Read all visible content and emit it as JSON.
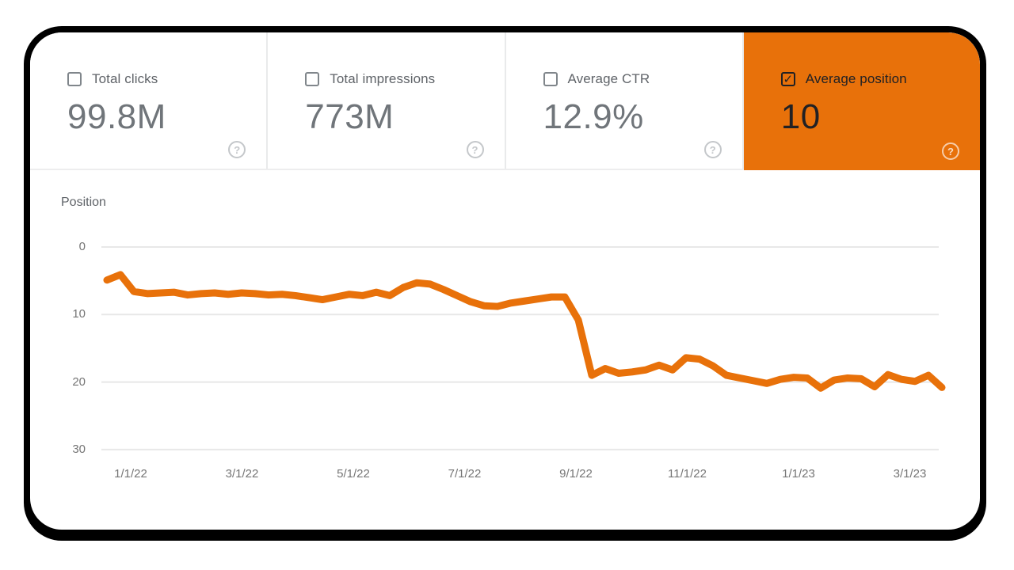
{
  "card": {
    "metrics": [
      {
        "id": "total-clicks",
        "label": "Total clicks",
        "value": "99.8M",
        "checked": false,
        "selected": false
      },
      {
        "id": "total-impressions",
        "label": "Total impressions",
        "value": "773M",
        "checked": false,
        "selected": false
      },
      {
        "id": "average-ctr",
        "label": "Average CTR",
        "value": "12.9%",
        "checked": false,
        "selected": false
      },
      {
        "id": "average-position",
        "label": "Average position",
        "value": "10",
        "checked": true,
        "selected": true
      }
    ]
  },
  "icons": {
    "help_glyph": "?",
    "check_glyph": "✓"
  },
  "colors": {
    "accent_orange": "#e8710a",
    "selected_text": "#212124",
    "gridline": "#e8e8e8",
    "tick_text": "#757575",
    "panel_border": "#000000"
  },
  "chart_data": {
    "type": "line",
    "title": "Position",
    "y_axis_inverted": true,
    "ylim": [
      0,
      30
    ],
    "y_ticks": [
      0,
      10,
      20,
      30
    ],
    "x_tick_labels": [
      "1/1/22",
      "3/1/22",
      "5/1/22",
      "7/1/22",
      "9/1/22",
      "11/1/22",
      "1/1/23",
      "3/1/23"
    ],
    "grid": "horizontal",
    "legend": "none",
    "series": [
      {
        "name": "Average position",
        "color": "#e8710a",
        "cadence": "weekly",
        "values": [
          4.9,
          4.1,
          6.6,
          6.9,
          6.8,
          6.7,
          7.1,
          6.9,
          6.8,
          7.0,
          6.8,
          6.9,
          7.1,
          7.0,
          7.2,
          7.5,
          7.8,
          7.4,
          7.0,
          7.2,
          6.7,
          7.2,
          6.0,
          5.3,
          5.5,
          6.3,
          7.2,
          8.1,
          8.7,
          8.8,
          8.3,
          8.0,
          7.7,
          7.4,
          7.4,
          10.8,
          19.0,
          18.0,
          18.7,
          18.5,
          18.2,
          17.5,
          18.2,
          16.4,
          16.6,
          17.6,
          19.0,
          19.4,
          19.8,
          20.2,
          19.6,
          19.3,
          19.4,
          20.9,
          19.7,
          19.4,
          19.5,
          20.7,
          18.9,
          19.6,
          19.9,
          19.0,
          20.8
        ]
      }
    ]
  }
}
